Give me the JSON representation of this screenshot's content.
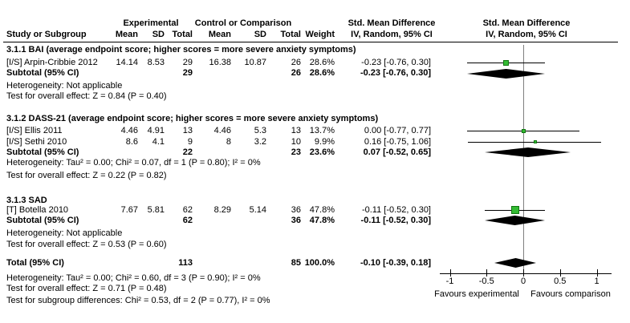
{
  "header": {
    "col_study": "Study or Subgroup",
    "group_experimental": "Experimental",
    "group_control": "Control or Comparison",
    "col_mean": "Mean",
    "col_sd": "SD",
    "col_total": "Total",
    "col_weight": "Weight",
    "col_smd": "Std. Mean Difference",
    "col_method": "IV, Random, 95% CI",
    "plot_smd": "Std. Mean Difference",
    "plot_method": "IV, Random, 95% CI"
  },
  "sections": [
    {
      "title": "3.1.1 BAI (average endpoint score; higher scores = more severe anxiety symptoms)",
      "studies": [
        {
          "label": "[I/S] Arpin-Cribbie 2012",
          "mean1": "14.14",
          "sd1": "8.53",
          "total1": "29",
          "mean2": "16.38",
          "sd2": "10.87",
          "total2": "26",
          "weight": "28.6%",
          "ci": "-0.23 [-0.76, 0.30]"
        }
      ],
      "subtotal": {
        "label": "Subtotal (95% CI)",
        "total1": "29",
        "total2": "26",
        "weight": "28.6%",
        "ci": "-0.23 [-0.76, 0.30]"
      },
      "heterogeneity": "Heterogeneity: Not applicable",
      "overall": "Test for overall effect: Z = 0.84 (P = 0.40)"
    },
    {
      "title": "3.1.2 DASS-21 (average endpoint score; higher scores = more severe anxiety symptoms)",
      "studies": [
        {
          "label": "[I/S] Ellis 2011",
          "mean1": "4.46",
          "sd1": "4.91",
          "total1": "13",
          "mean2": "4.46",
          "sd2": "5.3",
          "total2": "13",
          "weight": "13.7%",
          "ci": "0.00 [-0.77, 0.77]"
        },
        {
          "label": "[I/S] Sethi 2010",
          "mean1": "8.6",
          "sd1": "4.1",
          "total1": "9",
          "mean2": "8",
          "sd2": "3.2",
          "total2": "10",
          "weight": "9.9%",
          "ci": "0.16 [-0.75, 1.06]"
        }
      ],
      "subtotal": {
        "label": "Subtotal (95% CI)",
        "total1": "22",
        "total2": "23",
        "weight": "23.6%",
        "ci": "0.07 [-0.52, 0.65]"
      },
      "heterogeneity": "Heterogeneity: Tau² = 0.00; Chi² = 0.07, df = 1 (P = 0.80); I² = 0%",
      "overall": "Test for overall effect: Z = 0.22 (P = 0.82)"
    },
    {
      "title": "3.1.3 SAD",
      "studies": [
        {
          "label": "[T] Botella 2010",
          "mean1": "7.67",
          "sd1": "5.81",
          "total1": "62",
          "mean2": "8.29",
          "sd2": "5.14",
          "total2": "36",
          "weight": "47.8%",
          "ci": "-0.11 [-0.52, 0.30]"
        }
      ],
      "subtotal": {
        "label": "Subtotal (95% CI)",
        "total1": "62",
        "total2": "36",
        "weight": "47.8%",
        "ci": "-0.11 [-0.52, 0.30]"
      },
      "heterogeneity": "Heterogeneity: Not applicable",
      "overall": "Test for overall effect: Z = 0.53 (P = 0.60)"
    }
  ],
  "total": {
    "label": "Total (95% CI)",
    "total1": "113",
    "total2": "85",
    "weight": "100.0%",
    "ci": "-0.10 [-0.39, 0.18]",
    "heterogeneity": "Heterogeneity: Tau² = 0.00; Chi² = 0.60, df = 3 (P = 0.90); I² = 0%",
    "overall": "Test for overall effect: Z = 0.71 (P = 0.48)",
    "subgroup_diff": "Test for subgroup differences: Chi² = 0.53, df = 2 (P = 0.77), I² = 0%"
  },
  "chart_data": {
    "type": "forest",
    "title": "Std. Mean Difference, IV, Random, 95% CI",
    "axis": {
      "xlim": [
        -1.15,
        1.2
      ],
      "ticks": [
        {
          "v": -1,
          "label": "-1"
        },
        {
          "v": -0.5,
          "label": "-0.5"
        },
        {
          "v": 0,
          "label": "0"
        },
        {
          "v": 0.5,
          "label": "0.5"
        },
        {
          "v": 1,
          "label": "1"
        }
      ],
      "label_left": "Favours experimental",
      "label_right": "Favours comparison"
    },
    "marker_fill": "#33bb33",
    "marker_border": "#117711",
    "zero_line_color": "#7f7f7f",
    "rows": [
      {
        "kind": "study",
        "name": "Arpin-Cribbie 2012",
        "est": -0.23,
        "lo": -0.76,
        "hi": 0.3,
        "weight": 28.6
      },
      {
        "kind": "diamond",
        "name": "BAI subtotal",
        "est": -0.23,
        "lo": -0.76,
        "hi": 0.3
      },
      {
        "kind": "study",
        "name": "Ellis 2011",
        "est": 0.0,
        "lo": -0.77,
        "hi": 0.77,
        "weight": 13.7
      },
      {
        "kind": "study",
        "name": "Sethi 2010",
        "est": 0.16,
        "lo": -0.75,
        "hi": 1.06,
        "weight": 9.9
      },
      {
        "kind": "diamond",
        "name": "DASS-21 subtotal",
        "est": 0.07,
        "lo": -0.52,
        "hi": 0.65
      },
      {
        "kind": "study",
        "name": "Botella 2010",
        "est": -0.11,
        "lo": -0.52,
        "hi": 0.3,
        "weight": 47.8
      },
      {
        "kind": "diamond",
        "name": "SAD subtotal",
        "est": -0.11,
        "lo": -0.52,
        "hi": 0.3
      },
      {
        "kind": "diamond",
        "name": "Total",
        "est": -0.1,
        "lo": -0.39,
        "hi": 0.18
      }
    ]
  }
}
